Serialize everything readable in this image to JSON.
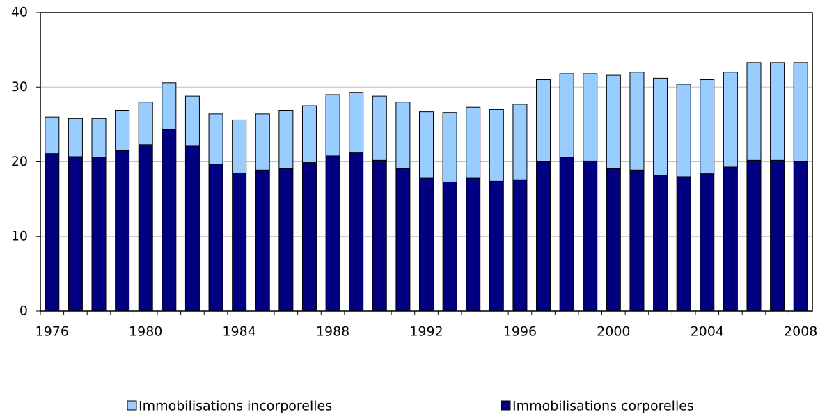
{
  "chart_data": {
    "type": "stacked_bar",
    "categories": [
      "1976",
      null,
      null,
      null,
      "1980",
      null,
      null,
      null,
      "1984",
      null,
      null,
      null,
      "1988",
      null,
      null,
      null,
      "1992",
      null,
      null,
      null,
      "1996",
      null,
      null,
      null,
      "2000",
      null,
      null,
      null,
      "2004",
      null,
      null,
      null,
      "2008"
    ],
    "series": [
      {
        "name": "Immobilisations corporelles",
        "color": "#000080",
        "values": [
          21.1,
          20.7,
          20.6,
          21.5,
          22.3,
          24.3,
          22.1,
          19.7,
          18.5,
          18.9,
          19.1,
          19.9,
          20.8,
          21.2,
          20.2,
          19.1,
          17.8,
          17.3,
          17.8,
          17.4,
          17.6,
          20.0,
          20.6,
          20.1,
          19.1,
          18.9,
          18.2,
          18.0,
          18.4,
          19.3,
          20.2,
          20.2,
          20.0
        ]
      },
      {
        "name": "Immobilisations incorporelles",
        "color": "#99ccff",
        "values": [
          4.9,
          5.1,
          5.2,
          5.4,
          5.7,
          6.3,
          6.7,
          6.7,
          7.1,
          7.5,
          7.8,
          7.6,
          8.2,
          8.1,
          8.6,
          8.9,
          8.9,
          9.3,
          9.5,
          9.6,
          10.1,
          11.0,
          11.2,
          11.7,
          12.5,
          13.1,
          13.0,
          12.4,
          12.6,
          12.7,
          13.1,
          13.1,
          13.3
        ]
      }
    ],
    "ylim": [
      0,
      40
    ],
    "yticks": [
      0,
      10,
      20,
      30,
      40
    ],
    "grid": true
  }
}
